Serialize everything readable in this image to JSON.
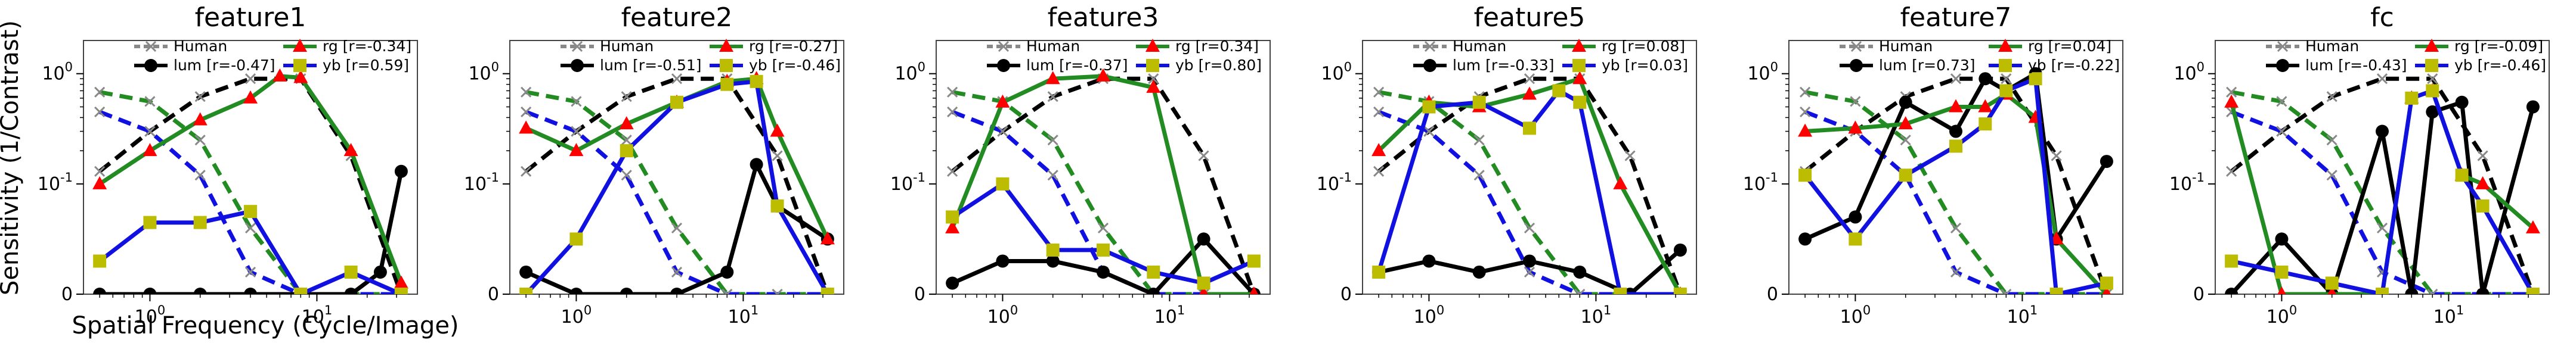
{
  "figure": {
    "ylabel": "Sensitivity (1/Contrast)",
    "xlabel": "Spatial Frequency (Cycle/Image)"
  },
  "styles": {
    "human_color": "#888888",
    "lum_color": "#000000",
    "rg_color": "#228B22",
    "yb_color": "#1010e0",
    "rg_marker": "#ff0000",
    "yb_marker": "#bcbc00"
  },
  "chart_data": [
    {
      "type": "line",
      "title": "feature1",
      "xscale": "log",
      "yscale": "symlog",
      "xlim": [
        0.4,
        40
      ],
      "ylim": [
        0,
        2
      ],
      "xticks": [
        "10^0",
        "10^1"
      ],
      "yticks": [
        "0",
        "10^-1",
        "10^0"
      ],
      "legend": {
        "placement": "top-center",
        "entries": [
          "Human",
          "lum [r=-0.47]",
          "rg    [r=-0.34]",
          "yb    [r=0.59]"
        ]
      },
      "series": [
        {
          "name": "Human",
          "marker": "x",
          "style": "dashed",
          "x": [
            0.5,
            1,
            2,
            4,
            8,
            16,
            32
          ],
          "y": [
            0.13,
            0.3,
            0.62,
            0.9,
            0.9,
            0.18,
            0.0
          ]
        },
        {
          "name": "Human",
          "marker": "x",
          "style": "dashed",
          "x": [
            0.5,
            1,
            2,
            4,
            8,
            16,
            32
          ],
          "y": [
            0.68,
            0.56,
            0.25,
            0.06,
            0.0,
            0.0,
            0.0
          ]
        },
        {
          "name": "Human",
          "marker": "x",
          "style": "dashed",
          "x": [
            0.5,
            1,
            2,
            4,
            8,
            16,
            32
          ],
          "y": [
            0.45,
            0.3,
            0.12,
            0.02,
            0.0,
            0.0,
            0.0
          ]
        },
        {
          "name": "lum [r=-0.47]",
          "marker": "o",
          "style": "solid",
          "x": [
            0.5,
            1,
            2,
            4,
            8,
            16,
            24,
            32
          ],
          "y": [
            0.0,
            0.0,
            0.0,
            0.0,
            0.0,
            0.0,
            0.02,
            0.13
          ]
        },
        {
          "name": "rg    [r=-0.34]",
          "marker": "^",
          "style": "solid",
          "x": [
            0.5,
            1,
            2,
            4,
            6,
            8,
            16,
            32
          ],
          "y": [
            0.1,
            0.2,
            0.38,
            0.6,
            0.95,
            0.92,
            0.2,
            0.01
          ]
        },
        {
          "name": "yb    [r=0.59]",
          "marker": "s",
          "style": "solid",
          "x": [
            0.5,
            1,
            2,
            4,
            8,
            16,
            32
          ],
          "y": [
            0.03,
            0.065,
            0.065,
            0.075,
            0.0,
            0.02,
            0.0
          ]
        }
      ]
    },
    {
      "type": "line",
      "title": "feature2",
      "xscale": "log",
      "yscale": "symlog",
      "xlim": [
        0.4,
        40
      ],
      "ylim": [
        0,
        2
      ],
      "xticks": [
        "10^0",
        "10^1"
      ],
      "yticks": [
        "0",
        "10^-1",
        "10^0"
      ],
      "legend": {
        "placement": "top-center",
        "entries": [
          "Human",
          "lum [r=-0.51]",
          "rg    [r=-0.27]",
          "yb    [r=-0.46]"
        ]
      },
      "series": [
        {
          "name": "Human",
          "marker": "x",
          "style": "dashed",
          "x": [
            0.5,
            1,
            2,
            4,
            8,
            16,
            32
          ],
          "y": [
            0.13,
            0.3,
            0.62,
            0.9,
            0.9,
            0.18,
            0.0
          ]
        },
        {
          "name": "Human",
          "marker": "x",
          "style": "dashed",
          "x": [
            0.5,
            1,
            2,
            4,
            8,
            16,
            32
          ],
          "y": [
            0.68,
            0.56,
            0.25,
            0.06,
            0.0,
            0.0,
            0.0
          ]
        },
        {
          "name": "Human",
          "marker": "x",
          "style": "dashed",
          "x": [
            0.5,
            1,
            2,
            4,
            8,
            16,
            32
          ],
          "y": [
            0.45,
            0.3,
            0.12,
            0.02,
            0.0,
            0.0,
            0.0
          ]
        },
        {
          "name": "lum [r=-0.51]",
          "marker": "o",
          "style": "solid",
          "x": [
            0.5,
            1,
            2,
            4,
            8,
            12,
            16,
            32
          ],
          "y": [
            0.02,
            0.0,
            0.0,
            0.0,
            0.02,
            0.15,
            0.08,
            0.05
          ]
        },
        {
          "name": "rg    [r=-0.27]",
          "marker": "^",
          "style": "solid",
          "x": [
            0.5,
            1,
            2,
            4,
            8,
            12,
            16,
            32
          ],
          "y": [
            0.32,
            0.2,
            0.35,
            0.55,
            0.85,
            0.9,
            0.3,
            0.05
          ]
        },
        {
          "name": "yb    [r=-0.46]",
          "marker": "s",
          "style": "solid",
          "x": [
            0.5,
            1,
            2,
            4,
            8,
            12,
            16,
            32
          ],
          "y": [
            0.0,
            0.05,
            0.2,
            0.55,
            0.8,
            0.85,
            0.08,
            0.0
          ]
        }
      ]
    },
    {
      "type": "line",
      "title": "feature3",
      "xscale": "log",
      "yscale": "symlog",
      "xlim": [
        0.4,
        40
      ],
      "ylim": [
        0,
        2
      ],
      "xticks": [
        "10^0",
        "10^1"
      ],
      "yticks": [
        "0",
        "10^-1",
        "10^0"
      ],
      "legend": {
        "placement": "top-center",
        "entries": [
          "Human",
          "lum [r=-0.37]",
          "rg    [r=0.34]",
          "yb    [r=0.80]"
        ]
      },
      "series": [
        {
          "name": "Human",
          "marker": "x",
          "style": "dashed",
          "x": [
            0.5,
            1,
            2,
            4,
            8,
            16,
            32
          ],
          "y": [
            0.13,
            0.3,
            0.62,
            0.9,
            0.9,
            0.18,
            0.0
          ]
        },
        {
          "name": "Human",
          "marker": "x",
          "style": "dashed",
          "x": [
            0.5,
            1,
            2,
            4,
            8,
            16,
            32
          ],
          "y": [
            0.68,
            0.56,
            0.25,
            0.06,
            0.0,
            0.0,
            0.0
          ]
        },
        {
          "name": "Human",
          "marker": "x",
          "style": "dashed",
          "x": [
            0.5,
            1,
            2,
            4,
            8,
            16,
            32
          ],
          "y": [
            0.45,
            0.3,
            0.12,
            0.02,
            0.0,
            0.0,
            0.0
          ]
        },
        {
          "name": "lum [r=-0.37]",
          "marker": "o",
          "style": "solid",
          "x": [
            0.5,
            1,
            2,
            4,
            8,
            16,
            32
          ],
          "y": [
            0.01,
            0.03,
            0.03,
            0.02,
            0.0,
            0.05,
            0.0
          ]
        },
        {
          "name": "rg    [r=0.34]",
          "marker": "^",
          "style": "solid",
          "x": [
            0.5,
            1,
            2,
            4,
            8,
            16,
            32
          ],
          "y": [
            0.06,
            0.55,
            0.9,
            0.95,
            0.75,
            0.0,
            0.0
          ]
        },
        {
          "name": "yb    [r=0.80]",
          "marker": "s",
          "style": "solid",
          "x": [
            0.5,
            1,
            2,
            4,
            8,
            16,
            32
          ],
          "y": [
            0.07,
            0.1,
            0.04,
            0.04,
            0.02,
            0.01,
            0.03
          ]
        }
      ]
    },
    {
      "type": "line",
      "title": "feature5",
      "xscale": "log",
      "yscale": "symlog",
      "xlim": [
        0.4,
        40
      ],
      "ylim": [
        0,
        2
      ],
      "xticks": [
        "10^0",
        "10^1"
      ],
      "yticks": [
        "0",
        "10^-1",
        "10^0"
      ],
      "legend": {
        "placement": "top-center",
        "entries": [
          "Human",
          "lum [r=-0.33]",
          "rg    [r=0.08]",
          "yb    [r=0.03]"
        ]
      },
      "series": [
        {
          "name": "Human",
          "marker": "x",
          "style": "dashed",
          "x": [
            0.5,
            1,
            2,
            4,
            8,
            16,
            32
          ],
          "y": [
            0.13,
            0.3,
            0.62,
            0.9,
            0.9,
            0.18,
            0.0
          ]
        },
        {
          "name": "Human",
          "marker": "x",
          "style": "dashed",
          "x": [
            0.5,
            1,
            2,
            4,
            8,
            16,
            32
          ],
          "y": [
            0.68,
            0.56,
            0.25,
            0.06,
            0.0,
            0.0,
            0.0
          ]
        },
        {
          "name": "Human",
          "marker": "x",
          "style": "dashed",
          "x": [
            0.5,
            1,
            2,
            4,
            8,
            16,
            32
          ],
          "y": [
            0.45,
            0.3,
            0.12,
            0.02,
            0.0,
            0.0,
            0.0
          ]
        },
        {
          "name": "lum [r=-0.33]",
          "marker": "o",
          "style": "solid",
          "x": [
            0.5,
            1,
            2,
            4,
            8,
            16,
            32
          ],
          "y": [
            0.02,
            0.03,
            0.02,
            0.03,
            0.02,
            0.0,
            0.04
          ]
        },
        {
          "name": "rg    [r=0.08]",
          "marker": "^",
          "style": "solid",
          "x": [
            0.5,
            1,
            2,
            4,
            8,
            14,
            32
          ],
          "y": [
            0.2,
            0.55,
            0.5,
            0.65,
            0.9,
            0.1,
            0.0
          ]
        },
        {
          "name": "yb    [r=0.03]",
          "marker": "s",
          "style": "solid",
          "x": [
            0.5,
            1,
            2,
            4,
            6,
            8,
            14,
            32
          ],
          "y": [
            0.02,
            0.5,
            0.55,
            0.32,
            0.7,
            0.55,
            0.0,
            0.0
          ]
        }
      ]
    },
    {
      "type": "line",
      "title": "feature7",
      "xscale": "log",
      "yscale": "symlog",
      "xlim": [
        0.4,
        40
      ],
      "ylim": [
        0,
        2
      ],
      "xticks": [
        "10^0",
        "10^1"
      ],
      "yticks": [
        "0",
        "10^-1",
        "10^0"
      ],
      "legend": {
        "placement": "top-center",
        "entries": [
          "Human",
          "lum [r=0.73]",
          "rg    [r=0.04]",
          "yb    [r=-0.22]"
        ]
      },
      "series": [
        {
          "name": "Human",
          "marker": "x",
          "style": "dashed",
          "x": [
            0.5,
            1,
            2,
            4,
            8,
            16,
            32
          ],
          "y": [
            0.13,
            0.3,
            0.62,
            0.9,
            0.9,
            0.18,
            0.0
          ]
        },
        {
          "name": "Human",
          "marker": "x",
          "style": "dashed",
          "x": [
            0.5,
            1,
            2,
            4,
            8,
            16,
            32
          ],
          "y": [
            0.68,
            0.56,
            0.25,
            0.06,
            0.0,
            0.0,
            0.0
          ]
        },
        {
          "name": "Human",
          "marker": "x",
          "style": "dashed",
          "x": [
            0.5,
            1,
            2,
            4,
            8,
            16,
            32
          ],
          "y": [
            0.45,
            0.3,
            0.12,
            0.02,
            0.0,
            0.0,
            0.0
          ]
        },
        {
          "name": "lum [r=0.73]",
          "marker": "o",
          "style": "solid",
          "x": [
            0.5,
            1,
            2,
            4,
            6,
            8,
            12,
            16,
            32
          ],
          "y": [
            0.05,
            0.07,
            0.55,
            0.3,
            0.9,
            0.7,
            1.0,
            0.05,
            0.16
          ]
        },
        {
          "name": "rg    [r=0.04]",
          "marker": "^",
          "style": "solid",
          "x": [
            0.5,
            1,
            2,
            4,
            6,
            8,
            12,
            16,
            32
          ],
          "y": [
            0.3,
            0.32,
            0.35,
            0.5,
            0.5,
            0.65,
            0.4,
            0.05,
            0.0
          ]
        },
        {
          "name": "yb    [r=-0.22]",
          "marker": "s",
          "style": "solid",
          "x": [
            0.5,
            1,
            2,
            4,
            6,
            8,
            12,
            16,
            32
          ],
          "y": [
            0.12,
            0.05,
            0.12,
            0.22,
            0.35,
            0.7,
            0.9,
            0.0,
            0.01
          ]
        }
      ]
    },
    {
      "type": "line",
      "title": "fc",
      "xscale": "log",
      "yscale": "symlog",
      "xlim": [
        0.4,
        40
      ],
      "ylim": [
        0,
        2
      ],
      "xticks": [
        "10^0",
        "10^1"
      ],
      "yticks": [
        "0",
        "10^-1",
        "10^0"
      ],
      "legend": {
        "placement": "top-center",
        "entries": [
          "Human",
          "lum [r=-0.43]",
          "rg    [r=-0.09]",
          "yb    [r=-0.46]"
        ]
      },
      "series": [
        {
          "name": "Human",
          "marker": "x",
          "style": "dashed",
          "x": [
            0.5,
            1,
            2,
            4,
            8,
            16,
            32
          ],
          "y": [
            0.13,
            0.3,
            0.62,
            0.9,
            0.9,
            0.18,
            0.0
          ]
        },
        {
          "name": "Human",
          "marker": "x",
          "style": "dashed",
          "x": [
            0.5,
            1,
            2,
            4,
            8,
            16,
            32
          ],
          "y": [
            0.68,
            0.56,
            0.25,
            0.06,
            0.0,
            0.0,
            0.0
          ]
        },
        {
          "name": "Human",
          "marker": "x",
          "style": "dashed",
          "x": [
            0.5,
            1,
            2,
            4,
            8,
            16,
            32
          ],
          "y": [
            0.45,
            0.3,
            0.12,
            0.02,
            0.0,
            0.0,
            0.0
          ]
        },
        {
          "name": "lum [r=-0.43]",
          "marker": "o",
          "style": "solid",
          "x": [
            0.5,
            1,
            2,
            4,
            6,
            8,
            12,
            16,
            32
          ],
          "y": [
            0.0,
            0.05,
            0.0,
            0.3,
            0.0,
            0.45,
            0.55,
            0.0,
            0.5
          ]
        },
        {
          "name": "rg    [r=-0.09]",
          "marker": "^",
          "style": "solid",
          "x": [
            0.5,
            1,
            2,
            4,
            6,
            8,
            12,
            16,
            32
          ],
          "y": [
            0.55,
            0.0,
            0.0,
            0.0,
            0.6,
            0.7,
            0.12,
            0.1,
            0.06
          ]
        },
        {
          "name": "yb    [r=-0.46]",
          "marker": "s",
          "style": "solid",
          "x": [
            0.5,
            1,
            2,
            4,
            6,
            8,
            12,
            16,
            32
          ],
          "y": [
            0.03,
            0.02,
            0.01,
            0.0,
            0.6,
            0.7,
            0.12,
            0.08,
            0.0
          ]
        }
      ]
    }
  ]
}
